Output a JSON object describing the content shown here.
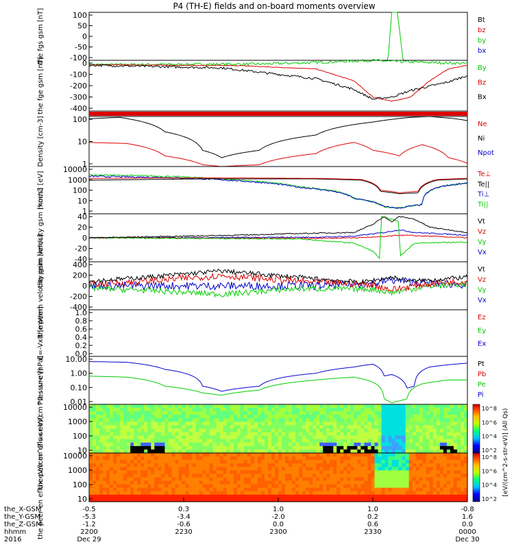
{
  "title": "P4 (TH-E) fields and on-board moments overview",
  "colors": {
    "black": "#000000",
    "red": "#dd0000",
    "green": "#00cc00",
    "blue": "#0000cc",
    "orange": "#ff7f00",
    "yellow": "#f0e020",
    "cyan": "#00e0e0"
  },
  "colorbar": {
    "label": "[eV/(cm^2-s-str-eV)] (All Qs)",
    "ticks": [
      "10^8",
      "10^6",
      "10^4",
      "10^2"
    ]
  },
  "chart_data": [
    {
      "type": "line",
      "ylabel": "the fgs gsm [nT]",
      "yticks": [
        "100",
        "50",
        "0",
        "-50",
        "-100"
      ],
      "ylim": [
        -100,
        120
      ],
      "legend": [
        {
          "name": "Bt",
          "color": "black"
        },
        {
          "name": "bz",
          "color": "red"
        },
        {
          "name": "by",
          "color": "green"
        },
        {
          "name": "bx",
          "color": "blue"
        }
      ],
      "series": [
        {
          "name": "by",
          "color": "green",
          "x": [
            0,
            0.79,
            0.8,
            0.815,
            0.83,
            1
          ],
          "y": [
            -100,
            -100,
            120,
            120,
            -100,
            -100
          ]
        }
      ]
    },
    {
      "type": "line",
      "ylabel": "the fge gsm [nT]",
      "yticks": [
        "0",
        "-100",
        "-200",
        "-300",
        "-400"
      ],
      "ylim": [
        -430,
        40
      ],
      "legend": [
        {
          "name": "By",
          "color": "green"
        },
        {
          "name": "Bz",
          "color": "red"
        },
        {
          "name": "Bx",
          "color": "black"
        }
      ],
      "series": [
        {
          "name": "By",
          "color": "green",
          "noise": 12,
          "x": [
            0,
            0.45,
            0.6,
            0.75,
            0.8,
            0.9,
            1
          ],
          "y": [
            0,
            5,
            20,
            40,
            30,
            20,
            10
          ]
        },
        {
          "name": "Bz",
          "color": "red",
          "noise": 3,
          "x": [
            0,
            0.4,
            0.6,
            0.7,
            0.75,
            0.8,
            0.85,
            0.9,
            0.95,
            1
          ],
          "y": [
            0,
            -10,
            -40,
            -150,
            -300,
            -340,
            -300,
            -150,
            -40,
            -5
          ]
        },
        {
          "name": "Bx",
          "color": "black",
          "noise": 10,
          "x": [
            0,
            0.35,
            0.6,
            0.7,
            0.75,
            0.8,
            0.85,
            0.9,
            0.95,
            1
          ],
          "y": [
            -5,
            -30,
            -130,
            -230,
            -320,
            -300,
            -240,
            -200,
            -160,
            -100
          ]
        }
      ]
    },
    {
      "type": "line",
      "ylabel": "",
      "yticks": [],
      "ylim": [
        0,
        1
      ],
      "legend": [],
      "series": [
        {
          "name": "",
          "color": "red",
          "width": 6,
          "x": [
            0,
            1
          ],
          "y": [
            0.5,
            0.5
          ]
        }
      ]
    },
    {
      "type": "line",
      "ylabel": "Density [cm-3]",
      "log": true,
      "yticks": [
        "100",
        "10",
        "1"
      ],
      "ylim": [
        0.4,
        200
      ],
      "legend": [
        {
          "name": "Ne",
          "color": "red"
        },
        {
          "name": "Ni",
          "color": "black"
        },
        {
          "name": "Npot",
          "color": "blue"
        }
      ],
      "series": [
        {
          "name": "Ni",
          "color": "black",
          "x": [
            0,
            0.08,
            0.2,
            0.3,
            0.35,
            0.45,
            0.6,
            0.75,
            0.85,
            0.9,
            0.97,
            1
          ],
          "y": [
            150,
            180,
            30,
            3,
            1.2,
            3,
            20,
            100,
            180,
            200,
            150,
            120
          ]
        },
        {
          "name": "Ne",
          "color": "red",
          "x": [
            0,
            0.1,
            0.2,
            0.3,
            0.35,
            0.45,
            0.6,
            0.7,
            0.75,
            0.82,
            0.88,
            0.95,
            1
          ],
          "y": [
            8,
            7,
            1.5,
            0.5,
            0.4,
            0.5,
            2,
            8,
            3,
            1.5,
            6,
            1.2,
            0.6
          ]
        }
      ]
    },
    {
      "type": "line",
      "ylabel": "mom3 [eV]",
      "log": true,
      "yticks": [
        "10000",
        "1000",
        "100",
        "10",
        "1"
      ],
      "ylim": [
        1,
        10000
      ],
      "legend": [
        {
          "name": "Te⊥",
          "color": "red"
        },
        {
          "name": "Te||",
          "color": "black"
        },
        {
          "name": "Ti⊥",
          "color": "blue"
        },
        {
          "name": "Ti||",
          "color": "green"
        }
      ],
      "series": [
        {
          "name": "Ti||",
          "color": "green",
          "noise": 0.12,
          "x": [
            0,
            0.2,
            0.4,
            0.55,
            0.7,
            0.78,
            0.82,
            0.88,
            0.93,
            1
          ],
          "y": [
            2000,
            1500,
            700,
            200,
            20,
            4,
            3,
            6,
            200,
            400
          ]
        },
        {
          "name": "Ti⊥",
          "color": "blue",
          "noise": 0.12,
          "x": [
            0,
            0.2,
            0.4,
            0.55,
            0.7,
            0.78,
            0.82,
            0.88,
            0.93,
            1
          ],
          "y": [
            1500,
            1200,
            600,
            180,
            20,
            4,
            3,
            6,
            200,
            400
          ]
        },
        {
          "name": "Te||",
          "color": "black",
          "x": [
            0,
            0.3,
            0.6,
            0.72,
            0.77,
            0.82,
            0.87,
            0.92,
            1
          ],
          "y": [
            700,
            900,
            900,
            700,
            80,
            50,
            60,
            700,
            900
          ]
        },
        {
          "name": "Te⊥",
          "color": "red",
          "x": [
            0,
            0.3,
            0.6,
            0.72,
            0.77,
            0.82,
            0.87,
            0.92,
            1
          ],
          "y": [
            1000,
            1100,
            1000,
            800,
            100,
            60,
            80,
            800,
            1000
          ]
        }
      ]
    },
    {
      "type": "line",
      "ylabel": "the peim velocity gsm [km/s]",
      "yticks": [
        "40",
        "20",
        "0",
        "-20",
        "-40"
      ],
      "ylim": [
        -45,
        45
      ],
      "legend": [
        {
          "name": "Vt",
          "color": "black"
        },
        {
          "name": "Vz",
          "color": "red"
        },
        {
          "name": "Vy",
          "color": "green"
        },
        {
          "name": "Vx",
          "color": "blue"
        }
      ],
      "series": [
        {
          "name": "Vx",
          "color": "blue",
          "noise": 1,
          "x": [
            0,
            0.6,
            0.7,
            0.78,
            0.82,
            0.86,
            1
          ],
          "y": [
            0,
            1,
            3,
            10,
            15,
            10,
            5
          ]
        },
        {
          "name": "Vz",
          "color": "red",
          "noise": 1,
          "x": [
            0,
            0.6,
            0.7,
            0.78,
            0.82,
            0.9,
            1
          ],
          "y": [
            0,
            -1,
            0,
            2,
            5,
            3,
            0
          ]
        },
        {
          "name": "Vy",
          "color": "green",
          "noise": 1,
          "x": [
            0,
            0.55,
            0.7,
            0.75,
            0.77,
            0.771,
            0.8,
            0.82,
            0.821,
            0.86,
            1
          ],
          "y": [
            0,
            -2,
            -10,
            -25,
            -40,
            40,
            35,
            30,
            -35,
            -10,
            -8
          ]
        },
        {
          "name": "Vt",
          "color": "black",
          "noise": 1,
          "x": [
            0,
            0.4,
            0.55,
            0.7,
            0.75,
            0.78,
            0.8,
            0.82,
            0.86,
            0.9,
            1
          ],
          "y": [
            0,
            5,
            8,
            10,
            25,
            40,
            30,
            40,
            35,
            20,
            10
          ]
        }
      ]
    },
    {
      "type": "line",
      "ylabel": "the peem velocity gsm [km/s]",
      "yticks": [
        "400",
        "200",
        "0",
        "-200",
        "-400"
      ],
      "ylim": [
        -420,
        420
      ],
      "legend": [
        {
          "name": "Vt",
          "color": "black"
        },
        {
          "name": "Vz",
          "color": "red"
        },
        {
          "name": "Vy",
          "color": "green"
        },
        {
          "name": "Vx",
          "color": "blue"
        }
      ],
      "series": [
        {
          "name": "Vx",
          "color": "blue",
          "noise": 70,
          "x": [
            0,
            0.3,
            0.6,
            0.75,
            0.8,
            0.9,
            1
          ],
          "y": [
            0,
            0,
            0,
            40,
            100,
            40,
            20
          ]
        },
        {
          "name": "Vy",
          "color": "green",
          "noise": 50,
          "x": [
            0,
            0.15,
            0.35,
            0.55,
            0.75,
            0.8,
            0.85,
            0.9,
            1
          ],
          "y": [
            -40,
            -80,
            -150,
            -50,
            -60,
            -120,
            -60,
            -10,
            30
          ]
        },
        {
          "name": "Vz",
          "color": "red",
          "noise": 60,
          "x": [
            0,
            0.15,
            0.35,
            0.55,
            0.75,
            0.8,
            0.85,
            0.9,
            1
          ],
          "y": [
            20,
            80,
            180,
            80,
            20,
            -70,
            -10,
            40,
            80
          ]
        },
        {
          "name": "Vt",
          "color": "black",
          "noise": 40,
          "x": [
            0,
            0.15,
            0.35,
            0.55,
            0.72,
            0.8,
            0.85,
            0.9,
            1
          ],
          "y": [
            80,
            150,
            260,
            150,
            60,
            150,
            80,
            100,
            150
          ]
        }
      ]
    },
    {
      "type": "line",
      "ylabel": "E=-VxB [mV/m]",
      "yticks": [
        "1.0",
        "0.8",
        "0.6",
        "0.4",
        "0.2",
        "0.0"
      ],
      "ylim": [
        0,
        1
      ],
      "legend": [
        {
          "name": "Ez",
          "color": "red"
        },
        {
          "name": "Ey",
          "color": "green"
        },
        {
          "name": "Ex",
          "color": "blue"
        }
      ],
      "series": []
    },
    {
      "type": "line",
      "ylabel": "Pressure [nPa]",
      "log": true,
      "yticks": [
        "10.00",
        "1.00",
        "0.10",
        "0.01"
      ],
      "ylim": [
        0.004,
        20
      ],
      "legend": [
        {
          "name": "Pt",
          "color": "black"
        },
        {
          "name": "Pb",
          "color": "red"
        },
        {
          "name": "Pe",
          "color": "green"
        },
        {
          "name": "Pi",
          "color": "blue"
        }
      ],
      "series": [
        {
          "name": "Pi",
          "color": "blue",
          "x": [
            0,
            0.1,
            0.2,
            0.3,
            0.35,
            0.45,
            0.6,
            0.7,
            0.75,
            0.78,
            0.8,
            0.84,
            0.86,
            0.9,
            1
          ],
          "y": [
            8,
            7,
            2,
            0.1,
            0.04,
            0.1,
            1,
            3,
            5,
            0.6,
            0.8,
            0.07,
            0.1,
            3,
            6
          ]
        },
        {
          "name": "Pe",
          "color": "green",
          "x": [
            0,
            0.1,
            0.2,
            0.3,
            0.35,
            0.45,
            0.6,
            0.7,
            0.75,
            0.78,
            0.8,
            0.84,
            0.88,
            0.95,
            1
          ],
          "y": [
            0.6,
            0.5,
            0.1,
            0.03,
            0.02,
            0.05,
            0.3,
            0.5,
            0.2,
            0.01,
            0.005,
            0.01,
            0.15,
            0.3,
            0.3
          ]
        }
      ]
    },
    {
      "type": "heatmap",
      "ylabel": "the peir en eflux eV/(cm^2-s-sr-eV)",
      "log": true,
      "yticks": [
        "10000",
        "1000",
        "100",
        "10"
      ],
      "ylim": [
        7,
        20000
      ]
    },
    {
      "type": "heatmap",
      "ylabel": "the peer en eflux eV/(cm^2-s-sr-eV)",
      "log": true,
      "yticks": [
        "10000",
        "1000",
        "100",
        "10"
      ],
      "ylim": [
        7,
        20000
      ]
    }
  ],
  "xaxis": {
    "labels": [
      "the_X-GSM",
      "the_Y-GSM",
      "the_Z-GSM",
      "hhmm",
      "2016"
    ],
    "ticks": [
      {
        "pos": 0,
        "vals": [
          "-0.5",
          "-5.3",
          "-1.2",
          "2200",
          "Dec 29"
        ]
      },
      {
        "pos": 0.25,
        "vals": [
          "0.3",
          "-3.4",
          "-0.6",
          "2230",
          ""
        ]
      },
      {
        "pos": 0.5,
        "vals": [
          "1.0",
          "-2.0",
          "0.0",
          "2300",
          ""
        ]
      },
      {
        "pos": 0.75,
        "vals": [
          "1.0",
          "0.2",
          "0.6",
          "2330",
          ""
        ]
      },
      {
        "pos": 1,
        "vals": [
          "-0.8",
          "1.6",
          "0.0",
          "0000",
          "Dec 30"
        ]
      }
    ]
  }
}
